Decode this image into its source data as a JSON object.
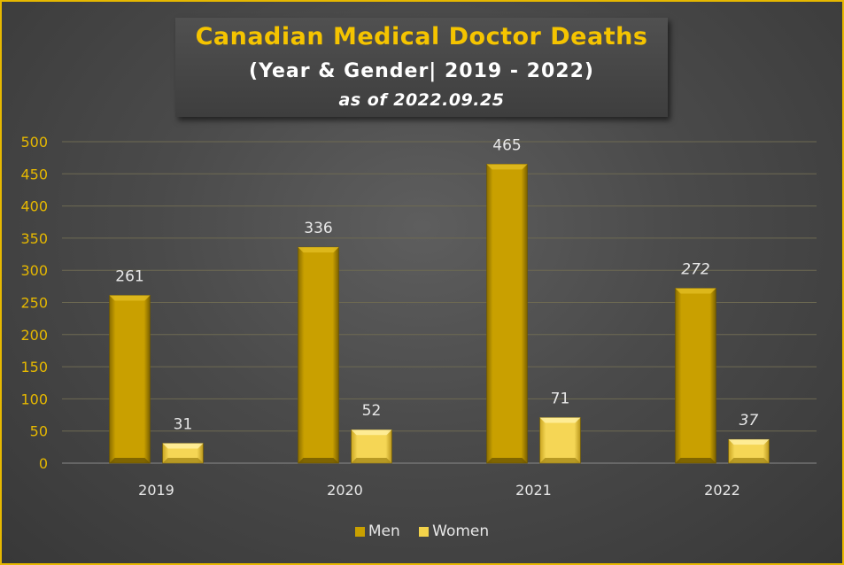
{
  "chart_data": {
    "type": "bar",
    "title": "Canadian Medical Doctor Deaths",
    "subtitle": "(Year & Gender| 2019 - 2022)",
    "note": "as of 2022.09.25",
    "categories": [
      "2019",
      "2020",
      "2021",
      "2022"
    ],
    "series": [
      {
        "name": "Men",
        "values": [
          261,
          336,
          465,
          272
        ],
        "color": "#c9a000"
      },
      {
        "name": "Women",
        "values": [
          31,
          52,
          71,
          37
        ],
        "color": "#f2d24a"
      }
    ],
    "ylim": [
      0,
      500
    ],
    "yticks": [
      0,
      50,
      100,
      150,
      200,
      250,
      300,
      350,
      400,
      450,
      500
    ],
    "grid": true,
    "legend_position": "bottom",
    "tick_label_color": "#e6b800",
    "italic_last_category_labels": true
  }
}
